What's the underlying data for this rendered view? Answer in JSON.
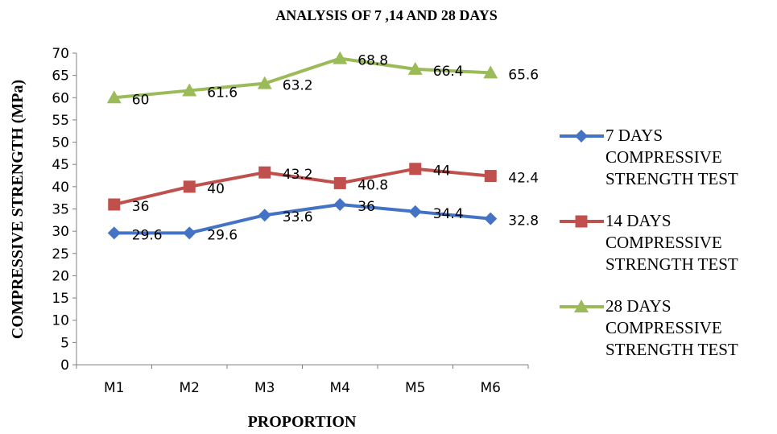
{
  "chart_data": {
    "type": "line",
    "title": "ANALYSIS OF 7 ,14 AND 28 DAYS",
    "xlabel": "PROPORTION",
    "ylabel": "COMPRESSIVE STRENGTH (MPa)",
    "categories": [
      "M1",
      "M2",
      "M3",
      "M4",
      "M5",
      "M6"
    ],
    "ylim": [
      0,
      70
    ],
    "ytick_step": 5,
    "grid": false,
    "legend_position": "right",
    "series": [
      {
        "name_lines": [
          "7 DAYS",
          "COMPRESSIVE",
          "STRENGTH TEST"
        ],
        "values": [
          29.6,
          29.6,
          33.6,
          36,
          34.4,
          32.8
        ],
        "labels": [
          "29.6",
          "29.6",
          "33.6",
          "36",
          "34.4",
          "32.8"
        ],
        "color": "#4472C4",
        "marker": "diamond"
      },
      {
        "name_lines": [
          "14 DAYS",
          "COMPRESSIVE",
          "STRENGTH TEST"
        ],
        "values": [
          36,
          40,
          43.2,
          40.8,
          44,
          42.4
        ],
        "labels": [
          "36",
          "40",
          "43.2",
          "40.8",
          "44",
          "42.4"
        ],
        "color": "#C0504D",
        "marker": "square"
      },
      {
        "name_lines": [
          "28 DAYS",
          "COMPRESSIVE",
          "STRENGTH TEST"
        ],
        "values": [
          60,
          61.6,
          63.2,
          68.8,
          66.4,
          65.6
        ],
        "labels": [
          "60",
          "61.6",
          "63.2",
          "68.8",
          "66.4",
          "65.6"
        ],
        "color": "#9BBB59",
        "marker": "triangle"
      }
    ]
  }
}
